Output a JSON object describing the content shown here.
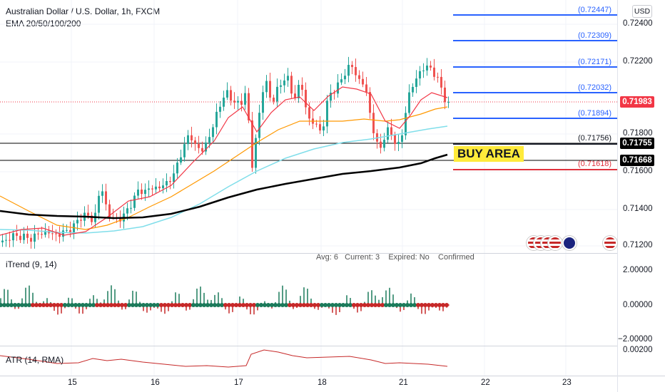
{
  "header": {
    "symbol_title": "Australian Dollar / U.S. Dollar, 1h, FXCM",
    "indicator": "EMA 20/50/100/200",
    "currency_button": "USD"
  },
  "price_axis": {
    "ticks": [
      "0.72400",
      "0.72200",
      "0.71800",
      "0.71600",
      "0.71400",
      "0.71200"
    ],
    "current_price": "0.71983",
    "support_1": "0.71755",
    "support_2": "0.71668"
  },
  "fib_levels": [
    {
      "label": "(0.72447)",
      "color": "#2962ff"
    },
    {
      "label": "(0.72309)",
      "color": "#2962ff"
    },
    {
      "label": "(0.72171)",
      "color": "#2962ff"
    },
    {
      "label": "(0.72032)",
      "color": "#2962ff"
    },
    {
      "label": "(0.71894)",
      "color": "#2962ff"
    },
    {
      "label": "(0.71756)",
      "color": "#131722"
    },
    {
      "label": "(0.71618)",
      "color": "#e0313d"
    }
  ],
  "annotation": {
    "buy_area": "BUY AREA",
    "bg": "#ffeb3b"
  },
  "status_line": {
    "avg": "Avg: 6",
    "current": "Current: 3",
    "expired": "Expired: No",
    "confirmed": "Confirmed"
  },
  "itrend": {
    "title": "iTrend (9, 14)",
    "ticks": [
      "2.00000",
      "0.00000",
      "−2.00000"
    ]
  },
  "atr": {
    "title": "ATR (14, RMA)",
    "tick": "0.00200"
  },
  "time_axis": {
    "labels": [
      "15",
      "16",
      "17",
      "18",
      "21",
      "22",
      "23"
    ]
  },
  "colors": {
    "bull": "#26a69a",
    "bear": "#ef5350",
    "ema20": "#f23645",
    "ema50": "#ff9800",
    "ema100": "#80deea",
    "ema200": "#000000",
    "fib": "#2962ff",
    "current_tag": "#f23645"
  }
}
